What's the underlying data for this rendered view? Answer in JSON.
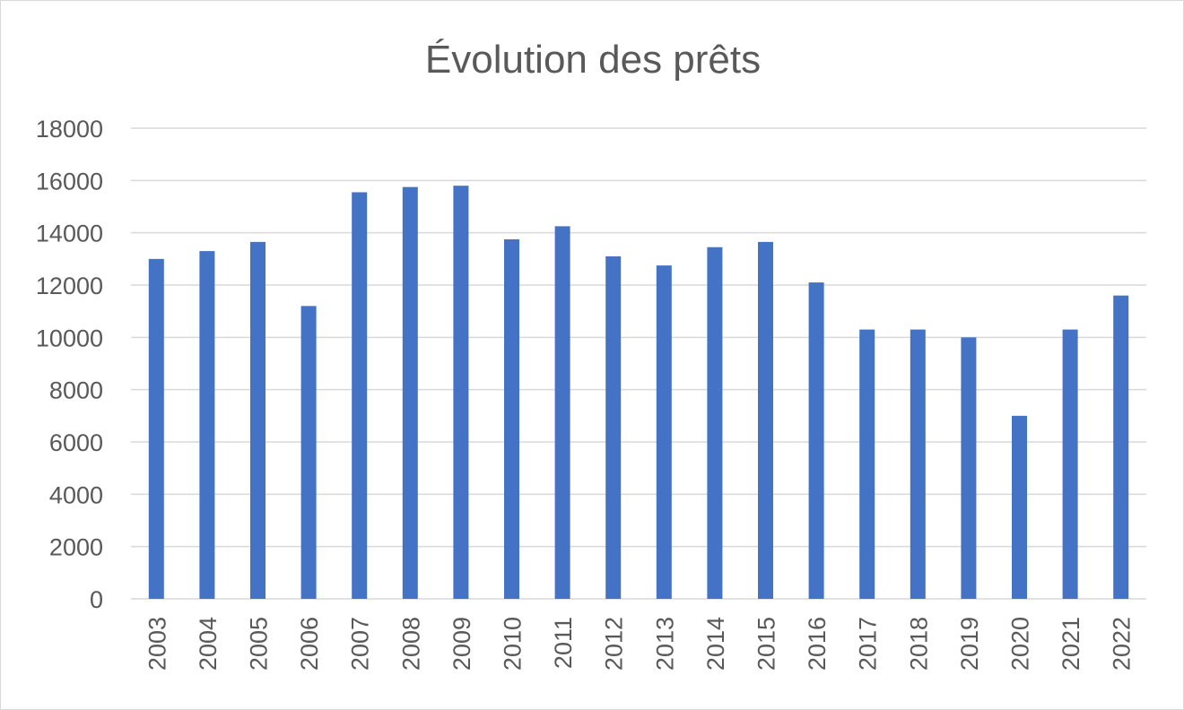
{
  "chart_data": {
    "type": "bar",
    "title": "Évolution des prêts",
    "xlabel": "",
    "ylabel": "",
    "categories": [
      "2003",
      "2004",
      "2005",
      "2006",
      "2007",
      "2008",
      "2009",
      "2010",
      "2011",
      "2012",
      "2013",
      "2014",
      "2015",
      "2016",
      "2017",
      "2018",
      "2019",
      "2020",
      "2021",
      "2022"
    ],
    "values": [
      13000,
      13300,
      13650,
      11200,
      15550,
      15750,
      15800,
      13750,
      14250,
      13100,
      12750,
      13450,
      13650,
      12100,
      10300,
      10300,
      10000,
      7000,
      10300,
      11600
    ],
    "ylim": [
      0,
      18000
    ],
    "yticks": [
      0,
      2000,
      4000,
      6000,
      8000,
      10000,
      12000,
      14000,
      16000,
      18000
    ],
    "grid": true,
    "legend": "none",
    "bar_color": "#4472C4",
    "grid_color": "#d9d9d9",
    "text_color": "#595959"
  }
}
